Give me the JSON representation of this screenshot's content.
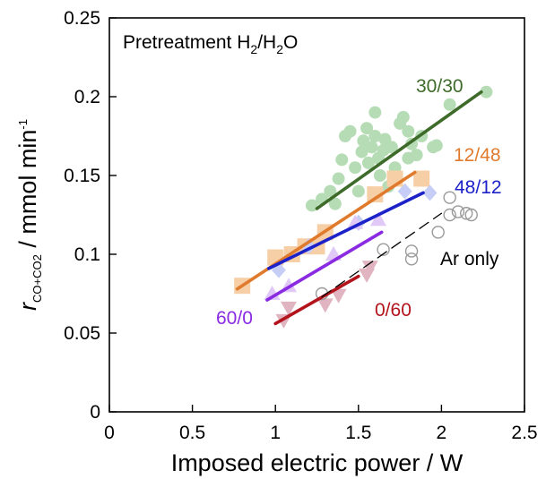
{
  "chart_data": {
    "type": "scatter",
    "title": "Pretreatment H₂/H₂O",
    "title_parts": {
      "prefix": "Pretreatment H",
      "sub1": "2",
      "mid": "/H",
      "sub2": "2",
      "suffix": "O"
    },
    "xlabel": "Imposed electric power / W",
    "ylabel": "r_CO+CO2 / mmol min⁻¹",
    "ylabel_parts": {
      "r": "r",
      "sub": "CO+CO2",
      "main": " / mmol min",
      "sup": "-1"
    },
    "xlim": [
      0,
      2.5
    ],
    "ylim": [
      0,
      0.25
    ],
    "x_ticks": [
      0,
      0.5,
      1,
      1.5,
      2,
      2.5
    ],
    "x_tick_labels": [
      "0",
      "0.5",
      "1",
      "1.5",
      "2",
      "2.5"
    ],
    "y_ticks": [
      0,
      0.05,
      0.1,
      0.15,
      0.2,
      0.25
    ],
    "y_tick_labels": [
      "0",
      "0.05",
      "0.1",
      "0.15",
      "0.2",
      "0.25"
    ],
    "grid": false,
    "legend": "none",
    "series": [
      {
        "name": "30/30",
        "marker": "circle",
        "marker_color": "#b6dcb6",
        "line_color": "#3e6b2a",
        "fit": [
          [
            1.25,
            0.129
          ],
          [
            2.24,
            0.203
          ]
        ],
        "points": [
          [
            1.22,
            0.131
          ],
          [
            1.28,
            0.135
          ],
          [
            1.33,
            0.14
          ],
          [
            1.36,
            0.132
          ],
          [
            1.38,
            0.148
          ],
          [
            1.4,
            0.16
          ],
          [
            1.42,
            0.175
          ],
          [
            1.45,
            0.178
          ],
          [
            1.48,
            0.155
          ],
          [
            1.5,
            0.14
          ],
          [
            1.52,
            0.165
          ],
          [
            1.53,
            0.172
          ],
          [
            1.55,
            0.18
          ],
          [
            1.56,
            0.158
          ],
          [
            1.58,
            0.168
          ],
          [
            1.6,
            0.19
          ],
          [
            1.6,
            0.175
          ],
          [
            1.62,
            0.161
          ],
          [
            1.63,
            0.15
          ],
          [
            1.65,
            0.166
          ],
          [
            1.66,
            0.173
          ],
          [
            1.68,
            0.143
          ],
          [
            1.7,
            0.168
          ],
          [
            1.72,
            0.155
          ],
          [
            1.75,
            0.183
          ],
          [
            1.77,
            0.187
          ],
          [
            1.8,
            0.161
          ],
          [
            1.8,
            0.178
          ],
          [
            1.82,
            0.17
          ],
          [
            1.85,
            0.163
          ],
          [
            1.88,
            0.175
          ],
          [
            1.95,
            0.168
          ],
          [
            1.97,
            0.169
          ],
          [
            2.05,
            0.195
          ],
          [
            2.27,
            0.203
          ]
        ]
      },
      {
        "name": "12/48",
        "marker": "square",
        "marker_color": "#f7cfa6",
        "line_color": "#e07b2e",
        "fit": [
          [
            0.77,
            0.078
          ],
          [
            1.84,
            0.152
          ]
        ],
        "points": [
          [
            0.8,
            0.08
          ],
          [
            1.0,
            0.098
          ],
          [
            1.1,
            0.1
          ],
          [
            1.18,
            0.105
          ],
          [
            1.25,
            0.105
          ],
          [
            1.3,
            0.114
          ],
          [
            1.6,
            0.138
          ],
          [
            1.72,
            0.148
          ],
          [
            1.88,
            0.148
          ]
        ]
      },
      {
        "name": "48/12",
        "marker": "diamond",
        "marker_color": "#c6cef7",
        "line_color": "#1c22c8",
        "fit": [
          [
            0.96,
            0.091
          ],
          [
            1.89,
            0.139
          ]
        ],
        "points": [
          [
            1.02,
            0.09
          ],
          [
            1.2,
            0.105
          ],
          [
            1.5,
            0.12
          ],
          [
            1.78,
            0.14
          ],
          [
            1.93,
            0.139
          ]
        ]
      },
      {
        "name": "60/0",
        "marker": "triangle-up",
        "marker_color": "#e0c8f7",
        "line_color": "#8a2be2",
        "fit": [
          [
            0.95,
            0.071
          ],
          [
            1.64,
            0.114
          ]
        ],
        "points": [
          [
            0.98,
            0.075
          ],
          [
            1.08,
            0.08
          ],
          [
            1.35,
            0.1
          ],
          [
            1.48,
            0.12
          ],
          [
            1.62,
            0.122
          ]
        ]
      },
      {
        "name": "0/60",
        "marker": "triangle-down",
        "marker_color": "#e0b4c0",
        "line_color": "#b3141c",
        "fit": [
          [
            1.0,
            0.056
          ],
          [
            1.5,
            0.086
          ]
        ],
        "points": [
          [
            1.05,
            0.058
          ],
          [
            1.08,
            0.066
          ],
          [
            1.3,
            0.068
          ],
          [
            1.38,
            0.074
          ],
          [
            1.55,
            0.087
          ],
          [
            1.57,
            0.092
          ]
        ]
      },
      {
        "name": "Ar only",
        "marker": "circle-open",
        "marker_color": "#9a9a9a",
        "line_color": "#000000",
        "line_style": "dashed",
        "fit": [
          [
            1.28,
            0.073
          ],
          [
            2.0,
            0.126
          ]
        ],
        "points": [
          [
            1.28,
            0.075
          ],
          [
            1.65,
            0.103
          ],
          [
            1.82,
            0.097
          ],
          [
            1.82,
            0.102
          ],
          [
            1.98,
            0.114
          ],
          [
            2.05,
            0.125
          ],
          [
            2.05,
            0.136
          ],
          [
            2.1,
            0.127
          ],
          [
            2.15,
            0.126
          ],
          [
            2.18,
            0.125
          ]
        ]
      }
    ]
  }
}
